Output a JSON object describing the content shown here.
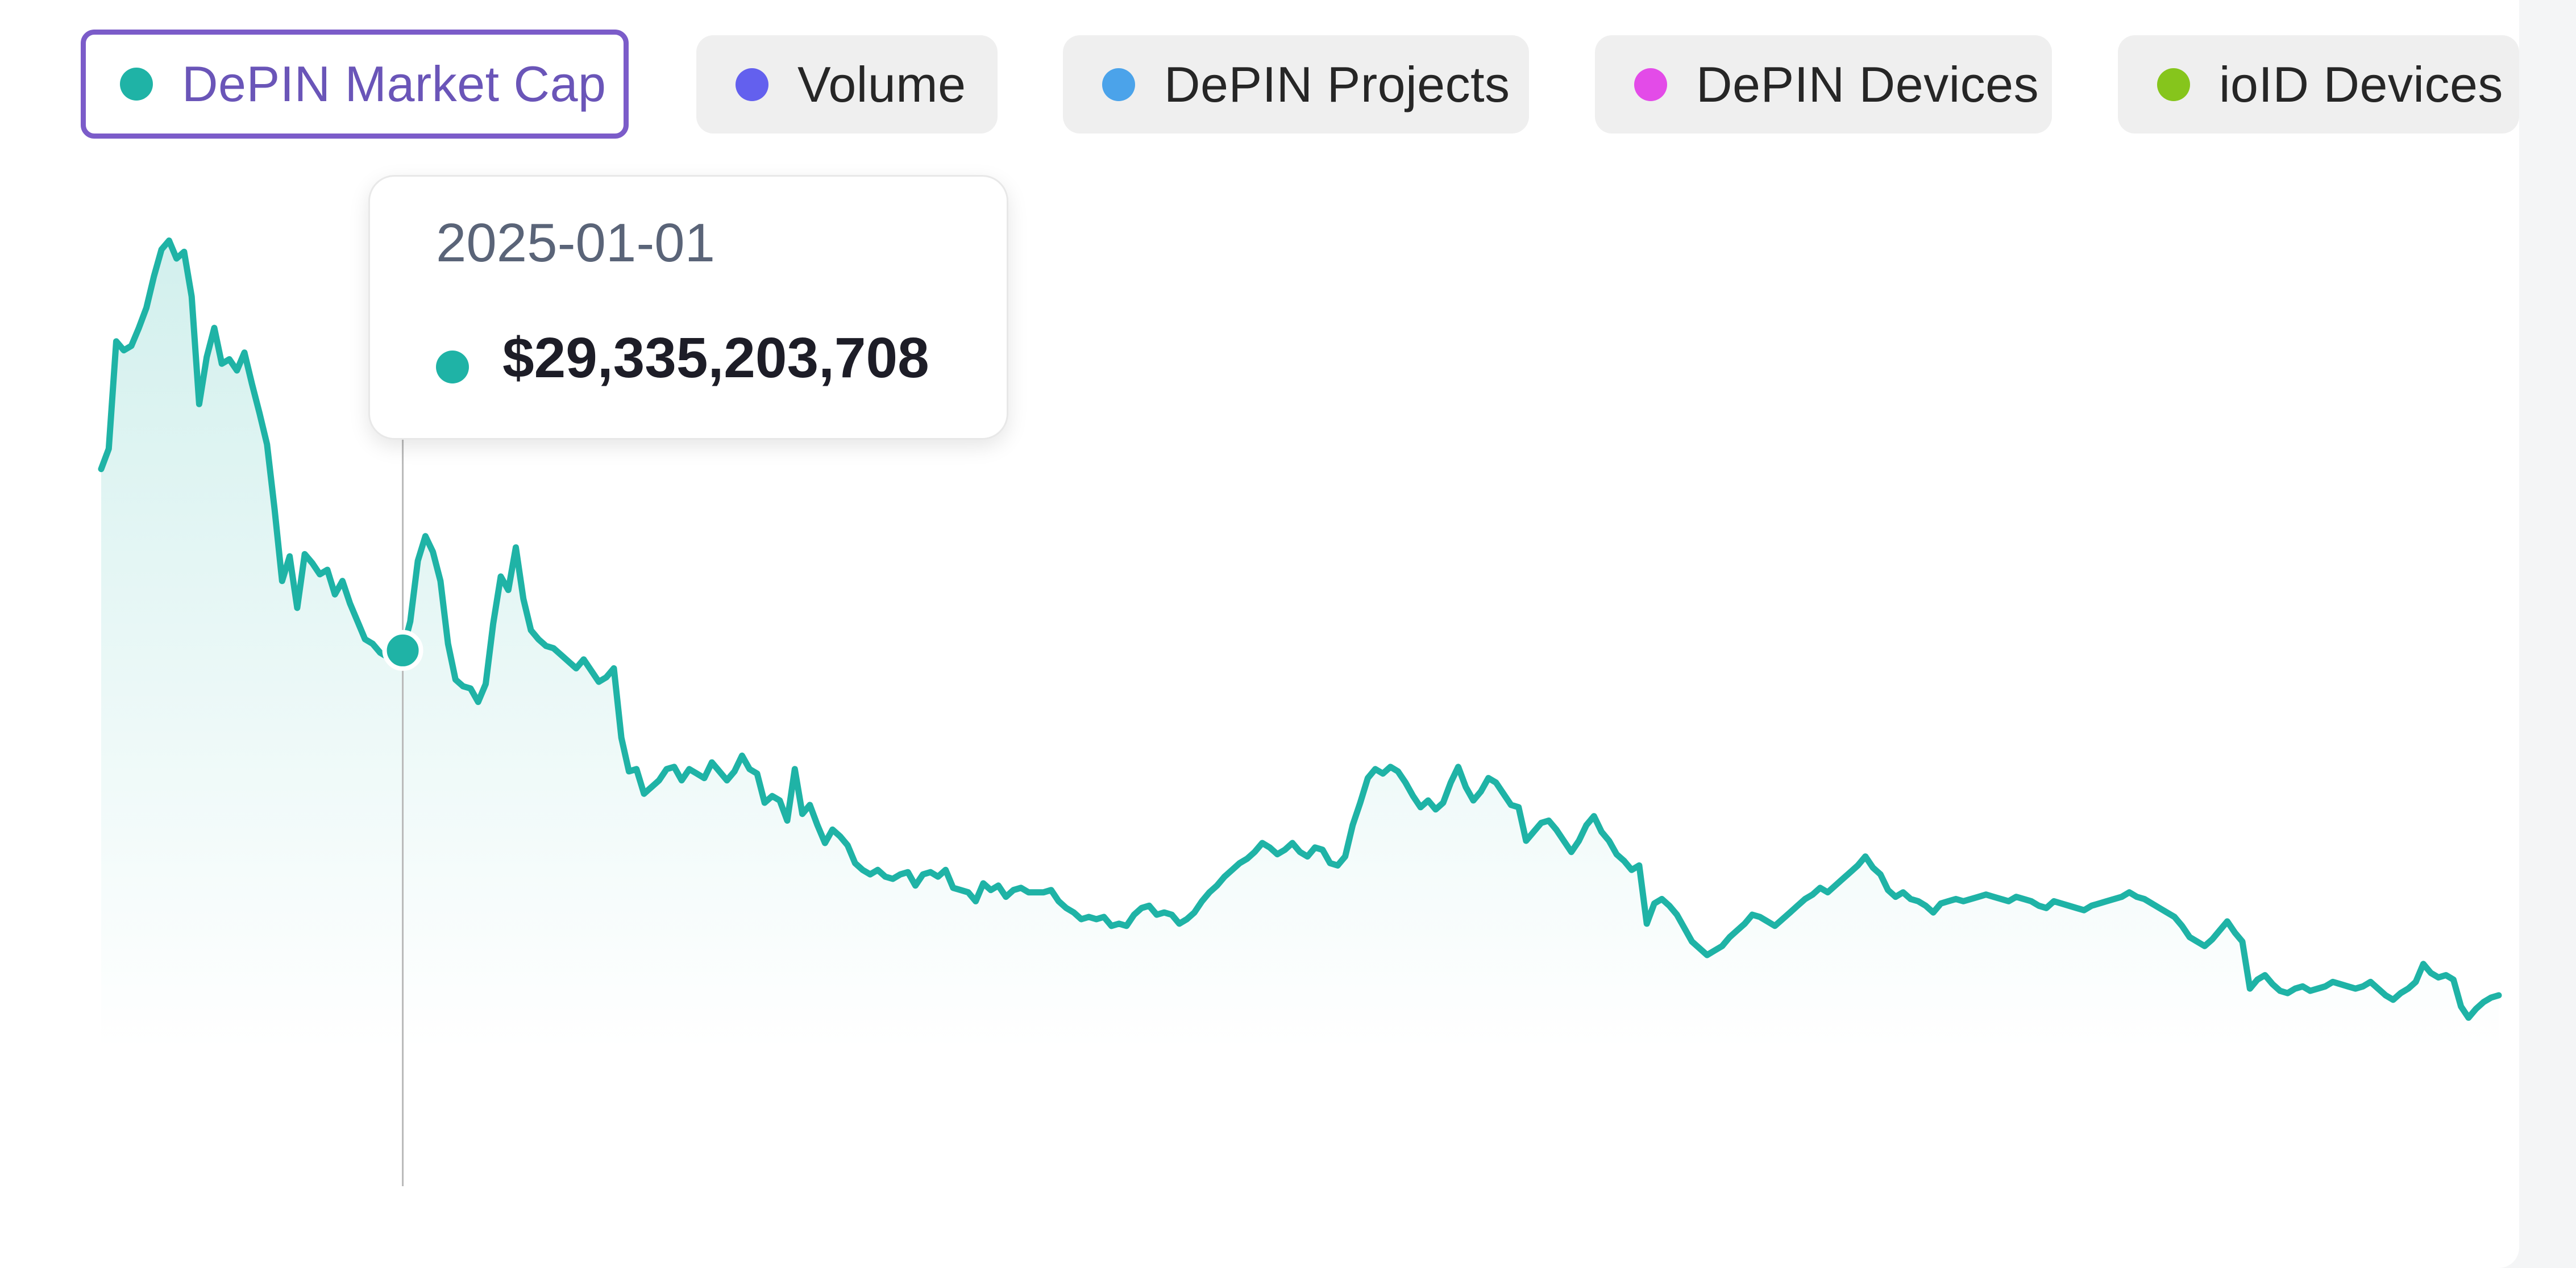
{
  "tabs": [
    {
      "label": "DePIN Market Cap",
      "color": "#1fb3a6",
      "active": true
    },
    {
      "label": "Volume",
      "color": "#6360ee",
      "active": false
    },
    {
      "label": "DePIN Projects",
      "color": "#4ba3ea",
      "active": false
    },
    {
      "label": "DePIN Devices",
      "color": "#e34be8",
      "active": false
    },
    {
      "label": "ioID Devices",
      "color": "#86c51c",
      "active": false
    }
  ],
  "tooltip": {
    "date": "2025-01-01",
    "value": "$29,335,203,708",
    "color": "#1fb3a6"
  },
  "chart_data": {
    "type": "area",
    "title": "",
    "xlabel": "",
    "ylabel": "",
    "grid": false,
    "line_color": "#1fb3a6",
    "hover_index": 40,
    "ylim": [
      0,
      52000000000
    ],
    "series": [
      {
        "values": [
          37.4,
          38.3,
          43.1,
          42.7,
          42.9,
          43.7,
          44.6,
          46.0,
          47.2,
          47.6,
          46.8,
          47.1,
          45.1,
          40.3,
          42.4,
          43.7,
          42.1,
          42.3,
          41.8,
          42.6,
          41.2,
          39.9,
          38.5,
          35.6,
          32.4,
          33.5,
          31.2,
          33.6,
          33.2,
          32.7,
          32.9,
          31.8,
          32.4,
          31.4,
          30.6,
          29.8,
          29.6,
          29.2,
          29.0,
          29.2,
          29.3,
          30.6,
          33.3,
          34.4,
          33.7,
          32.4,
          29.6,
          28.0,
          27.7,
          27.6,
          27.0,
          27.8,
          30.5,
          32.6,
          32.0,
          33.9,
          31.6,
          30.2,
          29.8,
          29.5,
          29.4,
          29.1,
          28.8,
          28.5,
          28.9,
          28.4,
          27.9,
          28.1,
          28.5,
          25.4,
          23.9,
          24.0,
          22.9,
          23.2,
          23.5,
          24.0,
          24.1,
          23.5,
          24.0,
          23.8,
          23.6,
          24.3,
          23.9,
          23.5,
          23.9,
          24.6,
          24.0,
          23.8,
          22.5,
          22.8,
          22.6,
          21.7,
          24.0,
          22.0,
          22.4,
          21.5,
          20.7,
          21.3,
          21.0,
          20.6,
          19.8,
          19.5,
          19.3,
          19.5,
          19.2,
          19.1,
          19.3,
          19.4,
          18.8,
          19.3,
          19.4,
          19.2,
          19.5,
          18.7,
          18.6,
          18.5,
          18.1,
          18.9,
          18.6,
          18.8,
          18.3,
          18.6,
          18.7,
          18.5,
          18.5,
          18.5,
          18.6,
          18.1,
          17.8,
          17.6,
          17.3,
          17.4,
          17.3,
          17.4,
          17.0,
          17.1,
          17.0,
          17.5,
          17.8,
          17.9,
          17.5,
          17.6,
          17.5,
          17.1,
          17.3,
          17.6,
          18.1,
          18.5,
          18.8,
          19.2,
          19.5,
          19.8,
          20.0,
          20.3,
          20.7,
          20.5,
          20.2,
          20.4,
          20.7,
          20.3,
          20.1,
          20.5,
          20.4,
          19.8,
          19.7,
          20.1,
          21.5,
          22.5,
          23.6,
          24.0,
          23.8,
          24.1,
          23.9,
          23.4,
          22.8,
          22.3,
          22.6,
          22.2,
          22.5,
          23.4,
          24.1,
          23.2,
          22.6,
          23.0,
          23.6,
          23.4,
          22.9,
          22.4,
          22.3,
          20.8,
          21.2,
          21.6,
          21.7,
          21.3,
          20.8,
          20.3,
          20.8,
          21.5,
          21.9,
          21.2,
          20.8,
          20.2,
          19.9,
          19.5,
          19.7,
          17.1,
          18.0,
          18.2,
          17.9,
          17.5,
          16.9,
          16.3,
          16.0,
          15.7,
          15.9,
          16.1,
          16.5,
          16.8,
          17.1,
          17.5,
          17.4,
          17.2,
          17.0,
          17.3,
          17.6,
          17.9,
          18.2,
          18.4,
          18.7,
          18.5,
          18.8,
          19.1,
          19.4,
          19.7,
          20.1,
          19.6,
          19.3,
          18.6,
          18.3,
          18.5,
          18.2,
          18.1,
          17.9,
          17.6,
          18.0,
          18.1,
          18.2,
          18.1,
          18.2,
          18.3,
          18.4,
          18.3,
          18.2,
          18.1,
          18.3,
          18.2,
          18.1,
          17.9,
          17.8,
          18.1,
          18.0,
          17.9,
          17.8,
          17.7,
          17.9,
          18.0,
          18.1,
          18.2,
          18.3,
          18.5,
          18.3,
          18.2,
          18.0,
          17.8,
          17.6,
          17.4,
          17.0,
          16.5,
          16.3,
          16.1,
          16.4,
          16.8,
          17.2,
          16.7,
          16.3,
          14.2,
          14.6,
          14.8,
          14.4,
          14.1,
          14.0,
          14.2,
          14.3,
          14.1,
          14.2,
          14.3,
          14.5,
          14.4,
          14.3,
          14.2,
          14.3,
          14.5,
          14.2,
          13.9,
          13.7,
          14.0,
          14.2,
          14.5,
          15.3,
          14.9,
          14.7,
          14.8,
          14.6,
          13.4,
          12.9,
          13.3,
          13.6,
          13.8,
          13.9
        ]
      }
    ]
  }
}
